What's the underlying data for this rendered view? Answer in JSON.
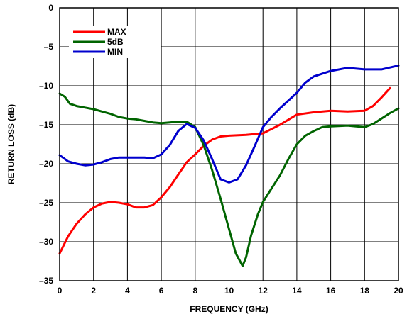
{
  "chart_data": {
    "type": "line",
    "xlabel": "FREQUENCY (GHz)",
    "ylabel": "RETURN LOSS (dB)",
    "xlim": [
      0,
      20
    ],
    "ylim": [
      -35,
      0
    ],
    "x_ticks": [
      0,
      2,
      4,
      6,
      8,
      10,
      12,
      14,
      16,
      18,
      20
    ],
    "y_ticks": [
      0,
      -5,
      -10,
      -15,
      -20,
      -25,
      -30,
      -35
    ],
    "x_tick_labels": [
      "0",
      "2",
      "4",
      "6",
      "8",
      "10",
      "12",
      "14",
      "16",
      "18",
      "20"
    ],
    "y_tick_labels": [
      "0",
      "–5",
      "–10",
      "–15",
      "–20",
      "–25",
      "–30",
      "–35"
    ],
    "grid": true,
    "legend_position": "top-left",
    "series": [
      {
        "name": "MAX",
        "color": "#ff0000",
        "points": [
          [
            0,
            -31.5
          ],
          [
            0.5,
            -29.3
          ],
          [
            1,
            -27.7
          ],
          [
            1.5,
            -26.5
          ],
          [
            2,
            -25.6
          ],
          [
            2.5,
            -25.1
          ],
          [
            3,
            -24.9
          ],
          [
            3.5,
            -25.0
          ],
          [
            4,
            -25.2
          ],
          [
            4.5,
            -25.6
          ],
          [
            5,
            -25.6
          ],
          [
            5.5,
            -25.3
          ],
          [
            6,
            -24.3
          ],
          [
            6.5,
            -23.0
          ],
          [
            7,
            -21.4
          ],
          [
            7.5,
            -19.8
          ],
          [
            8,
            -18.8
          ],
          [
            8.5,
            -17.7
          ],
          [
            9,
            -16.9
          ],
          [
            9.5,
            -16.5
          ],
          [
            10,
            -16.4
          ],
          [
            11,
            -16.3
          ],
          [
            12,
            -16.1
          ],
          [
            13,
            -15.0
          ],
          [
            14,
            -13.7
          ],
          [
            15,
            -13.4
          ],
          [
            16,
            -13.2
          ],
          [
            17,
            -13.3
          ],
          [
            18,
            -13.2
          ],
          [
            18.5,
            -12.6
          ],
          [
            19,
            -11.5
          ],
          [
            19.5,
            -10.3
          ]
        ]
      },
      {
        "name": "5dB",
        "color": "#006400",
        "points": [
          [
            0,
            -11.0
          ],
          [
            0.3,
            -11.4
          ],
          [
            0.6,
            -12.3
          ],
          [
            1,
            -12.6
          ],
          [
            1.5,
            -12.8
          ],
          [
            2,
            -13.0
          ],
          [
            2.5,
            -13.3
          ],
          [
            3,
            -13.6
          ],
          [
            3.5,
            -14.0
          ],
          [
            4,
            -14.2
          ],
          [
            4.5,
            -14.3
          ],
          [
            5,
            -14.5
          ],
          [
            5.5,
            -14.7
          ],
          [
            6,
            -14.8
          ],
          [
            6.5,
            -14.7
          ],
          [
            7,
            -14.6
          ],
          [
            7.5,
            -14.6
          ],
          [
            8,
            -15.3
          ],
          [
            8.5,
            -17.6
          ],
          [
            9,
            -20.8
          ],
          [
            9.5,
            -24.5
          ],
          [
            10,
            -28.4
          ],
          [
            10.4,
            -31.5
          ],
          [
            10.8,
            -33.1
          ],
          [
            11,
            -32.0
          ],
          [
            11.3,
            -29.2
          ],
          [
            11.7,
            -26.5
          ],
          [
            12,
            -24.9
          ],
          [
            12.5,
            -23.2
          ],
          [
            13,
            -21.5
          ],
          [
            13.5,
            -19.4
          ],
          [
            14,
            -17.5
          ],
          [
            14.5,
            -16.4
          ],
          [
            15,
            -15.8
          ],
          [
            15.5,
            -15.3
          ],
          [
            16,
            -15.2
          ],
          [
            17,
            -15.1
          ],
          [
            17.5,
            -15.2
          ],
          [
            18,
            -15.3
          ],
          [
            18.5,
            -14.9
          ],
          [
            19,
            -14.2
          ],
          [
            19.5,
            -13.5
          ],
          [
            20,
            -12.9
          ]
        ]
      },
      {
        "name": "MIN",
        "color": "#0000cd",
        "points": [
          [
            0,
            -18.9
          ],
          [
            0.5,
            -19.7
          ],
          [
            1,
            -20.0
          ],
          [
            1.5,
            -20.2
          ],
          [
            2,
            -20.1
          ],
          [
            2.5,
            -19.8
          ],
          [
            3,
            -19.4
          ],
          [
            3.5,
            -19.2
          ],
          [
            4,
            -19.2
          ],
          [
            5,
            -19.2
          ],
          [
            5.5,
            -19.3
          ],
          [
            6,
            -18.8
          ],
          [
            6.5,
            -17.6
          ],
          [
            7,
            -15.8
          ],
          [
            7.5,
            -14.9
          ],
          [
            8,
            -15.4
          ],
          [
            8.5,
            -17.0
          ],
          [
            9,
            -19.4
          ],
          [
            9.5,
            -22.0
          ],
          [
            10,
            -22.4
          ],
          [
            10.5,
            -22.0
          ],
          [
            11,
            -20.2
          ],
          [
            11.5,
            -17.8
          ],
          [
            12,
            -15.3
          ],
          [
            12.5,
            -14.0
          ],
          [
            13,
            -12.9
          ],
          [
            14,
            -10.9
          ],
          [
            14.5,
            -9.6
          ],
          [
            15,
            -8.8
          ],
          [
            16,
            -8.1
          ],
          [
            17,
            -7.7
          ],
          [
            18,
            -7.9
          ],
          [
            19,
            -7.9
          ],
          [
            20,
            -7.4
          ]
        ]
      }
    ]
  }
}
